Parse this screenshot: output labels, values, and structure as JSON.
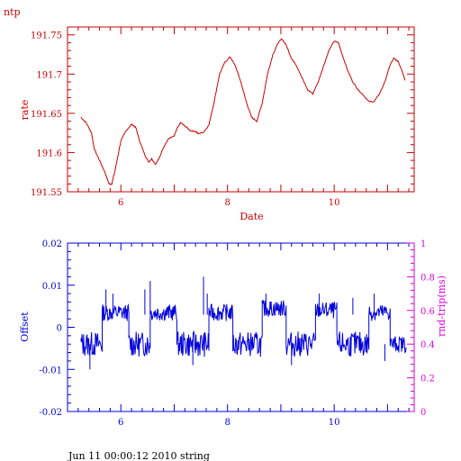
{
  "corner_label": "ntp",
  "footer": "Jun 11 00:00:12 2010 string",
  "colors": {
    "top": "#cc0000",
    "offset": "#0000dd",
    "rtrip": "#dd00dd",
    "background": "#ffffff"
  },
  "chart_data": [
    {
      "type": "line",
      "xlabel": "Date",
      "ylabel": "rate",
      "xlim": [
        5.0,
        11.5
      ],
      "ylim": [
        191.55,
        191.76
      ],
      "xticks": [
        6,
        8,
        10
      ],
      "yticks": [
        191.55,
        191.6,
        191.65,
        191.7,
        191.75
      ],
      "ytick_labels": [
        "191.55",
        "191.6",
        "191.65",
        "191.7",
        "191.75"
      ],
      "series": [
        {
          "color": "#cc0000",
          "points": [
            [
              5.25,
              191.645
            ],
            [
              5.35,
              191.638
            ],
            [
              5.45,
              191.625
            ],
            [
              5.5,
              191.605
            ],
            [
              5.6,
              191.59
            ],
            [
              5.7,
              191.575
            ],
            [
              5.78,
              191.56
            ],
            [
              5.83,
              191.56
            ],
            [
              5.9,
              191.58
            ],
            [
              6.0,
              191.615
            ],
            [
              6.1,
              191.628
            ],
            [
              6.2,
              191.636
            ],
            [
              6.28,
              191.632
            ],
            [
              6.35,
              191.615
            ],
            [
              6.45,
              191.597
            ],
            [
              6.52,
              191.588
            ],
            [
              6.58,
              191.592
            ],
            [
              6.65,
              191.585
            ],
            [
              6.72,
              191.593
            ],
            [
              6.8,
              191.607
            ],
            [
              6.9,
              191.618
            ],
            [
              7.0,
              191.621
            ],
            [
              7.05,
              191.63
            ],
            [
              7.12,
              191.638
            ],
            [
              7.2,
              191.634
            ],
            [
              7.3,
              191.628
            ],
            [
              7.4,
              191.627
            ],
            [
              7.45,
              191.624
            ],
            [
              7.55,
              191.626
            ],
            [
              7.65,
              191.635
            ],
            [
              7.75,
              191.665
            ],
            [
              7.85,
              191.7
            ],
            [
              7.95,
              191.715
            ],
            [
              8.05,
              191.722
            ],
            [
              8.15,
              191.71
            ],
            [
              8.25,
              191.69
            ],
            [
              8.35,
              191.665
            ],
            [
              8.45,
              191.645
            ],
            [
              8.55,
              191.64
            ],
            [
              8.65,
              191.663
            ],
            [
              8.75,
              191.7
            ],
            [
              8.85,
              191.725
            ],
            [
              8.95,
              191.74
            ],
            [
              9.02,
              191.745
            ],
            [
              9.1,
              191.737
            ],
            [
              9.2,
              191.72
            ],
            [
              9.3,
              191.71
            ],
            [
              9.4,
              191.695
            ],
            [
              9.5,
              191.68
            ],
            [
              9.6,
              191.675
            ],
            [
              9.7,
              191.69
            ],
            [
              9.8,
              191.71
            ],
            [
              9.9,
              191.73
            ],
            [
              10.0,
              191.742
            ],
            [
              10.08,
              191.74
            ],
            [
              10.15,
              191.725
            ],
            [
              10.25,
              191.705
            ],
            [
              10.35,
              191.69
            ],
            [
              10.45,
              191.68
            ],
            [
              10.55,
              191.673
            ],
            [
              10.65,
              191.665
            ],
            [
              10.75,
              191.665
            ],
            [
              10.85,
              191.675
            ],
            [
              10.95,
              191.69
            ],
            [
              11.05,
              191.712
            ],
            [
              11.12,
              191.72
            ],
            [
              11.2,
              191.716
            ],
            [
              11.27,
              191.705
            ],
            [
              11.33,
              191.692
            ]
          ]
        }
      ]
    },
    {
      "type": "line",
      "xlabel": "",
      "ylabel": "Offset",
      "y2label": "rnd-trip(ms)",
      "xlim": [
        5.0,
        11.5
      ],
      "ylim": [
        -0.02,
        0.02
      ],
      "y2lim": [
        0,
        1
      ],
      "xticks": [
        6,
        8,
        10
      ],
      "yticks": [
        -0.02,
        -0.01,
        0,
        0.01,
        0.02
      ],
      "ytick_labels": [
        "-0.02",
        "-0.01",
        "0",
        "0.01",
        "0.02"
      ],
      "y2ticks": [
        0,
        0.2,
        0.4,
        0.6,
        0.8,
        1
      ],
      "y2tick_labels": [
        "0",
        "0.2",
        "0.4",
        "0.6",
        "0.8",
        "1"
      ],
      "series": [
        {
          "color": "#0000dd",
          "segments": [
            {
              "x": [
                5.25,
                5.65
              ],
              "level": -0.004,
              "spread": 0.003
            },
            {
              "x": [
                5.65,
                6.15
              ],
              "level": 0.0035,
              "spread": 0.002
            },
            {
              "x": [
                6.15,
                6.55
              ],
              "level": -0.004,
              "spread": 0.003
            },
            {
              "x": [
                6.55,
                7.05
              ],
              "level": 0.0035,
              "spread": 0.002
            },
            {
              "x": [
                7.05,
                7.65
              ],
              "level": -0.004,
              "spread": 0.003
            },
            {
              "x": [
                7.65,
                8.1
              ],
              "level": 0.0035,
              "spread": 0.002
            },
            {
              "x": [
                8.1,
                8.65
              ],
              "level": -0.004,
              "spread": 0.003
            },
            {
              "x": [
                8.65,
                9.1
              ],
              "level": 0.0045,
              "spread": 0.002
            },
            {
              "x": [
                9.1,
                9.65
              ],
              "level": -0.004,
              "spread": 0.003
            },
            {
              "x": [
                9.65,
                10.05
              ],
              "level": 0.004,
              "spread": 0.002
            },
            {
              "x": [
                10.05,
                10.65
              ],
              "level": -0.004,
              "spread": 0.003
            },
            {
              "x": [
                10.65,
                11.05
              ],
              "level": 0.0035,
              "spread": 0.002
            },
            {
              "x": [
                11.05,
                11.35
              ],
              "level": -0.004,
              "spread": 0.002
            }
          ],
          "spikes": [
            [
              5.72,
              0.009
            ],
            [
              5.85,
              0.008
            ],
            [
              6.45,
              0.009
            ],
            [
              6.55,
              0.011
            ],
            [
              7.55,
              0.012
            ],
            [
              7.62,
              0.008
            ],
            [
              8.72,
              0.008
            ],
            [
              9.72,
              0.008
            ],
            [
              10.35,
              0.007
            ],
            [
              10.75,
              0.008
            ],
            [
              5.42,
              -0.01
            ],
            [
              7.35,
              -0.009
            ],
            [
              9.2,
              -0.009
            ],
            [
              10.95,
              -0.008
            ]
          ]
        }
      ]
    }
  ]
}
